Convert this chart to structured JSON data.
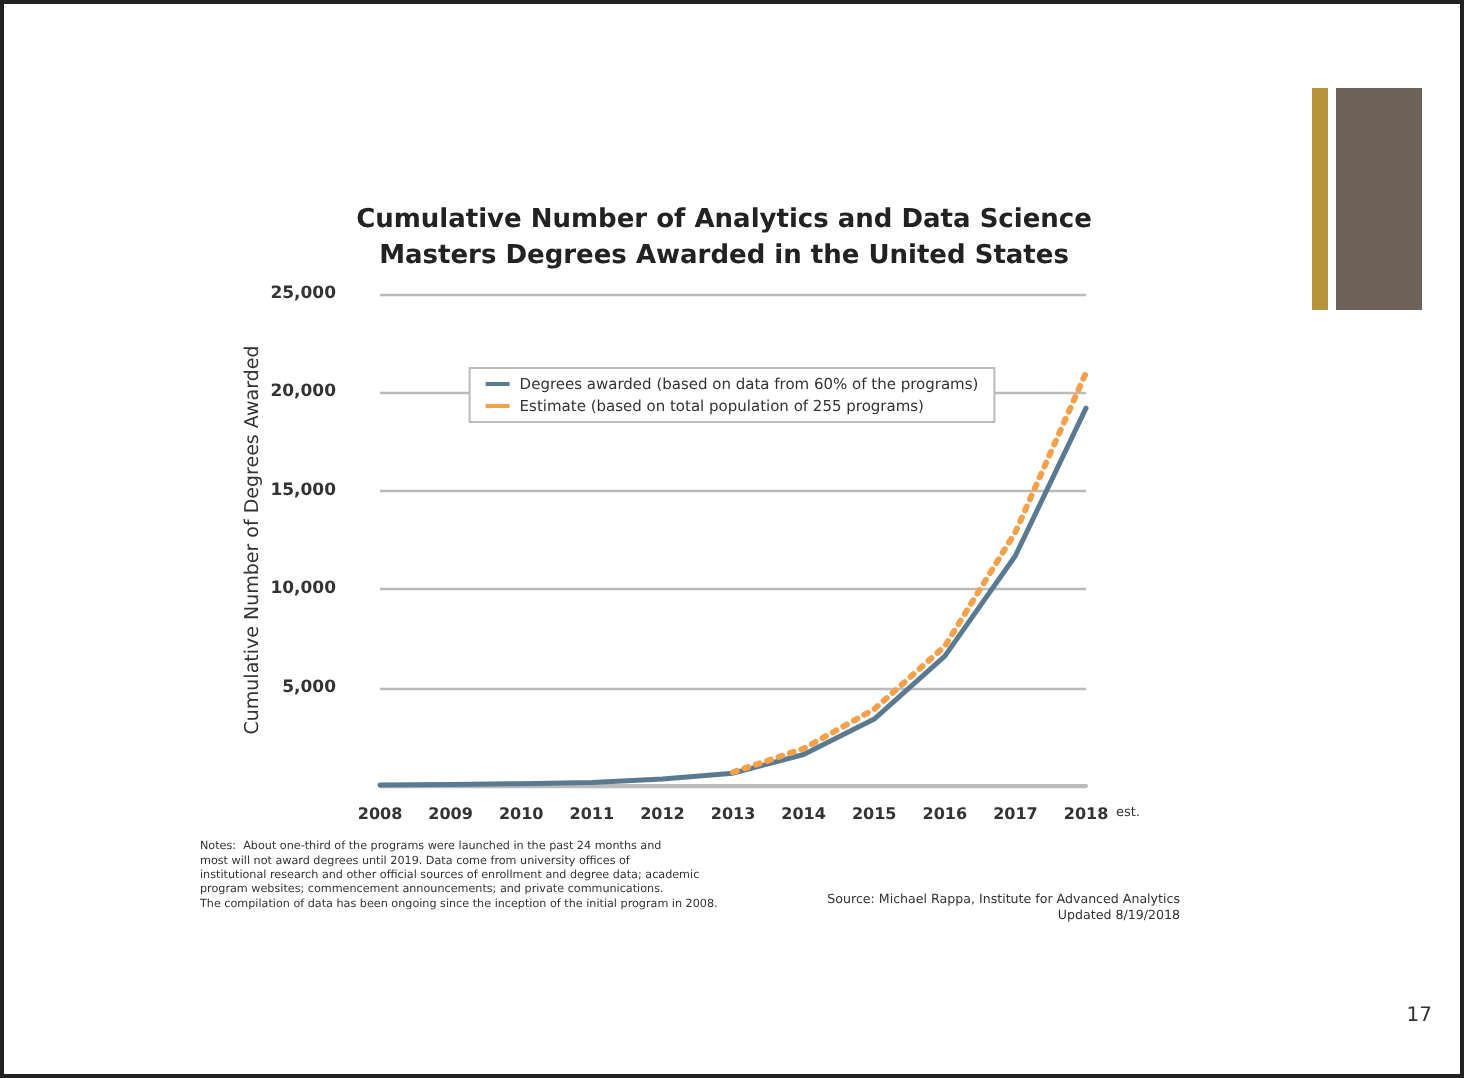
{
  "chart_data": {
    "type": "line",
    "title": "Cumulative Number of Analytics and Data Science\nMasters Degrees Awarded in the United States",
    "ylabel": "Cumulative Number of Degrees Awarded",
    "categories": [
      "2008",
      "2009",
      "2010",
      "2011",
      "2012",
      "2013",
      "2014",
      "2015",
      "2016",
      "2017",
      "2018"
    ],
    "series": [
      {
        "name": "Degrees awarded (based on data from 60% of the programs)",
        "color": "#5a7a92",
        "line_style": "solid",
        "values": [
          50,
          80,
          120,
          180,
          350,
          650,
          1600,
          3400,
          6600,
          11700,
          19200
        ]
      },
      {
        "name": "Estimate (based on total population of 255 programs)",
        "color": "#f5a04a",
        "line_style": "dotted",
        "values": [
          null,
          null,
          null,
          null,
          null,
          700,
          1900,
          3900,
          7100,
          12900,
          21000
        ]
      }
    ],
    "ylim": [
      0,
      25000
    ],
    "yticks": [
      {
        "value": 0,
        "label": null
      },
      {
        "value": 5000,
        "label": "5,000"
      },
      {
        "value": 10000,
        "label": "10,000"
      },
      {
        "value": 15000,
        "label": "15,000"
      },
      {
        "value": 20000,
        "label": "20,000"
      },
      {
        "value": 25000,
        "label": "25,000"
      }
    ],
    "grid": "y",
    "legend": "top",
    "marker": "none",
    "annotations": [
      "est.",
      "Notes:  About one-third of the programs were launched in the past 24 months and\nmost will not award degrees until 2019. Data come from university offices of\ninstitutional research and other official sources of enrollment and degree data; academic\nprogram websites; commencement announcements; and private communications.\nThe compilation of data has been ongoing since the inception of the initial program in 2008.",
      "Source: Michael Rappa, Institute for Advanced Analytics\nUpdated 8/19/2018",
      "17"
    ]
  }
}
